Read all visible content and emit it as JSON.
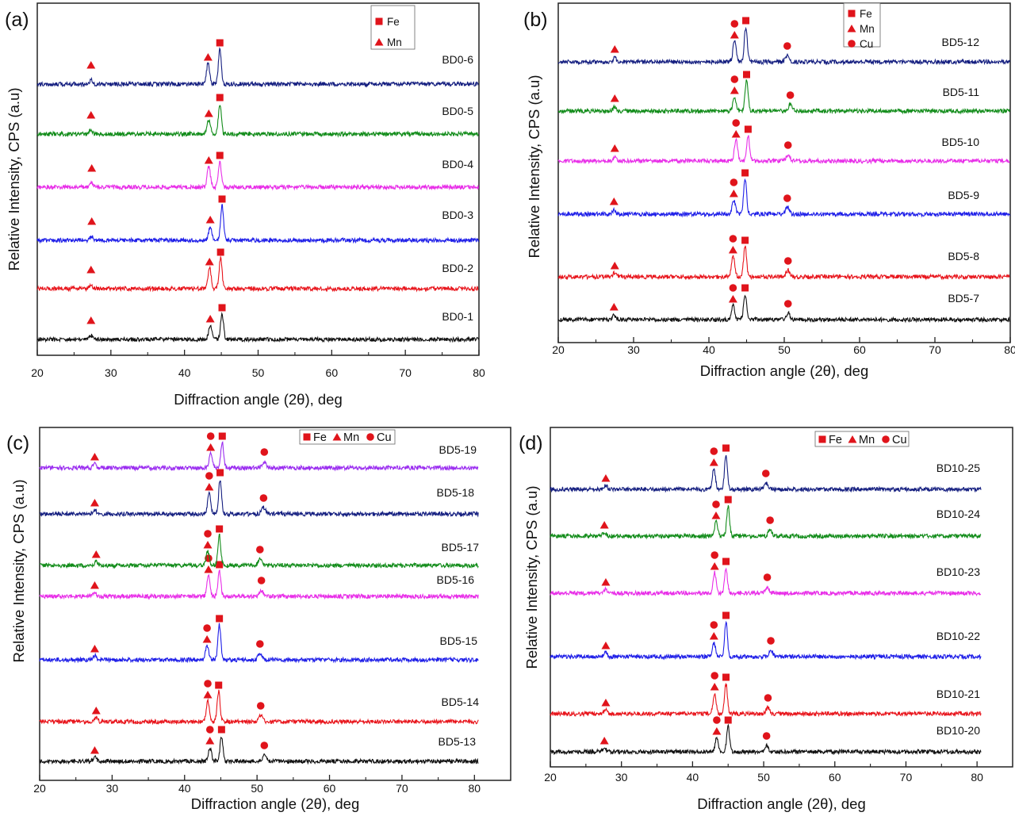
{
  "colors": {
    "black": "#111111",
    "red": "#e8141b",
    "blue": "#1f1fe8",
    "magenta": "#e82ee8",
    "green": "#128c1a",
    "navy": "#151f80",
    "purple": "#9a2cf0",
    "marker": "#e0141b"
  },
  "chart_data": [
    {
      "panel": "(a)",
      "type": "line",
      "xlabel": "Diffraction angle (2θ), deg",
      "ylabel": "Relative Intensity, CPS (a.u)",
      "xlim": [
        20,
        80
      ],
      "xticks": [
        20,
        30,
        40,
        50,
        60,
        70,
        80
      ],
      "legend": [
        "Fe",
        "Mn"
      ],
      "legend_position": "top-center",
      "series": [
        {
          "name": "BD0-1",
          "color": "black",
          "Mn_peak": 43.5,
          "Fe_peak": 45.1,
          "fe": 45.1,
          "mn": [
            27.3,
            43.5
          ],
          "cu": []
        },
        {
          "name": "BD0-2",
          "color": "red",
          "Mn_peak": 43.4,
          "Fe_peak": 44.9,
          "fe": 44.9,
          "mn": [
            27.3,
            43.4
          ],
          "cu": []
        },
        {
          "name": "BD0-3",
          "color": "blue",
          "Mn_peak": 43.5,
          "Fe_peak": 45.1,
          "fe": 45.1,
          "mn": [
            27.4,
            43.5
          ],
          "cu": []
        },
        {
          "name": "BD0-4",
          "color": "magenta",
          "Mn_peak": 43.3,
          "Fe_peak": 44.8,
          "fe": 44.8,
          "mn": [
            27.4,
            43.3
          ],
          "cu": []
        },
        {
          "name": "BD0-5",
          "color": "green",
          "Mn_peak": 43.3,
          "Fe_peak": 44.8,
          "fe": 44.8,
          "mn": [
            27.3,
            43.3
          ],
          "cu": []
        },
        {
          "name": "BD0-6",
          "color": "navy",
          "Mn_peak": 43.2,
          "Fe_peak": 44.8,
          "fe": 44.8,
          "mn": [
            27.3,
            43.2
          ],
          "cu": []
        }
      ]
    },
    {
      "panel": "(b)",
      "type": "line",
      "xlabel": "Diffraction angle (2θ), deg",
      "ylabel": "Relative Intensity, CPS (a.u)",
      "xlim": [
        20,
        80
      ],
      "xticks": [
        20,
        30,
        40,
        50,
        60,
        70,
        80
      ],
      "legend": [
        "Fe",
        "Mn",
        "Cu"
      ],
      "legend_position": "top-center",
      "series": [
        {
          "name": "BD5-7",
          "color": "black",
          "Mn_peak": 43.2,
          "Fe_peak": 44.8,
          "Cu_peak": 50.5,
          "fe": 44.8,
          "mn": [
            27.4,
            43.2
          ],
          "cu": [
            43.2,
            50.5
          ]
        },
        {
          "name": "BD5-8",
          "color": "red",
          "Mn_peak": 43.2,
          "Fe_peak": 44.8,
          "Cu_peak": 50.5,
          "fe": 44.8,
          "mn": [
            27.5,
            43.2
          ],
          "cu": [
            43.2,
            50.5
          ]
        },
        {
          "name": "BD5-9",
          "color": "blue",
          "Mn_peak": 43.3,
          "Fe_peak": 44.8,
          "Cu_peak": 50.4,
          "fe": 44.8,
          "mn": [
            27.4,
            43.3
          ],
          "cu": [
            43.3,
            50.4
          ]
        },
        {
          "name": "BD5-10",
          "color": "magenta",
          "Mn_peak": 43.6,
          "Fe_peak": 45.2,
          "Cu_peak": 50.5,
          "fe": 45.2,
          "mn": [
            27.5,
            43.6
          ],
          "cu": [
            43.6,
            50.5
          ]
        },
        {
          "name": "BD5-11",
          "color": "green",
          "Mn_peak": 43.4,
          "Fe_peak": 45.0,
          "Cu_peak": 50.8,
          "fe": 45.0,
          "mn": [
            27.5,
            43.4
          ],
          "cu": [
            43.4,
            50.8
          ]
        },
        {
          "name": "BD5-12",
          "color": "navy",
          "Mn_peak": 43.4,
          "Fe_peak": 44.9,
          "Cu_peak": 50.4,
          "fe": 44.9,
          "mn": [
            27.5,
            43.4
          ],
          "cu": [
            43.4,
            50.4
          ]
        }
      ]
    },
    {
      "panel": "(c)",
      "type": "line",
      "xlabel": "Diffraction angle (2θ), deg",
      "ylabel": "Relative Intensity, CPS (a.u)",
      "xlim": [
        20,
        85
      ],
      "xticks": [
        20,
        30,
        40,
        50,
        60,
        70,
        80
      ],
      "legend": [
        "Fe",
        "Mn",
        "Cu"
      ],
      "legend_position": "top-right",
      "series": [
        {
          "name": "BD5-13",
          "color": "black",
          "Mn_peak": 43.5,
          "Fe_peak": 45.1,
          "Cu_peak": 51.0,
          "fe": 45.1,
          "mn": [
            27.6,
            43.5
          ],
          "cu": [
            43.5,
            51.0
          ]
        },
        {
          "name": "BD5-14",
          "color": "red",
          "Mn_peak": 43.2,
          "Fe_peak": 44.7,
          "Cu_peak": 50.5,
          "fe": 44.7,
          "mn": [
            27.8,
            43.2
          ],
          "cu": [
            43.2,
            50.5
          ]
        },
        {
          "name": "BD5-15",
          "color": "blue",
          "Mn_peak": 43.1,
          "Fe_peak": 44.8,
          "Cu_peak": 50.4,
          "fe": 44.8,
          "mn": [
            27.6,
            43.1
          ],
          "cu": [
            43.1,
            50.4
          ]
        },
        {
          "name": "BD5-16",
          "color": "magenta",
          "Mn_peak": 43.3,
          "Fe_peak": 44.8,
          "Cu_peak": 50.6,
          "fe": 44.8,
          "mn": [
            27.6,
            43.3
          ],
          "cu": [
            43.3,
            50.6
          ]
        },
        {
          "name": "BD5-17",
          "color": "green",
          "Mn_peak": 43.2,
          "Fe_peak": 44.8,
          "Cu_peak": 50.4,
          "fe": 44.8,
          "mn": [
            27.8,
            43.2
          ],
          "cu": [
            43.2,
            50.4
          ]
        },
        {
          "name": "BD5-18",
          "color": "navy",
          "Mn_peak": 43.4,
          "Fe_peak": 44.9,
          "Cu_peak": 50.9,
          "fe": 44.9,
          "mn": [
            27.6,
            43.4
          ],
          "cu": [
            43.4,
            50.9
          ]
        },
        {
          "name": "BD5-19",
          "color": "purple",
          "Mn_peak": 43.6,
          "Fe_peak": 45.2,
          "Cu_peak": 51.0,
          "fe": 45.2,
          "mn": [
            27.6,
            43.6
          ],
          "cu": [
            43.6,
            51.0
          ]
        }
      ]
    },
    {
      "panel": "(d)",
      "type": "line",
      "xlabel": "Diffraction angle (2θ), deg",
      "ylabel": "Relative Intensity, CPS (a.u)",
      "xlim": [
        20,
        85
      ],
      "xticks": [
        20,
        30,
        40,
        50,
        60,
        70,
        80
      ],
      "legend": [
        "Fe",
        "Mn",
        "Cu"
      ],
      "legend_position": "top-center",
      "series": [
        {
          "name": "BD10-20",
          "color": "black",
          "Mn_peak": 43.4,
          "Fe_peak": 45.0,
          "Cu_peak": 50.4,
          "fe": 45.0,
          "mn": [
            27.6,
            43.4
          ],
          "cu": [
            43.4,
            50.4
          ]
        },
        {
          "name": "BD10-21",
          "color": "red",
          "Mn_peak": 43.1,
          "Fe_peak": 44.7,
          "Cu_peak": 50.6,
          "fe": 44.7,
          "mn": [
            27.8,
            43.1
          ],
          "cu": [
            43.1,
            50.6
          ]
        },
        {
          "name": "BD10-22",
          "color": "blue",
          "Mn_peak": 43.0,
          "Fe_peak": 44.7,
          "Cu_peak": 51.0,
          "fe": 44.7,
          "mn": [
            27.8,
            43.0
          ],
          "cu": [
            43.0,
            51.0
          ]
        },
        {
          "name": "BD10-23",
          "color": "magenta",
          "Mn_peak": 43.1,
          "Fe_peak": 44.7,
          "Cu_peak": 50.5,
          "fe": 44.7,
          "mn": [
            27.8,
            43.1
          ],
          "cu": [
            43.1,
            50.5
          ]
        },
        {
          "name": "BD10-24",
          "color": "green",
          "Mn_peak": 43.3,
          "Fe_peak": 45.0,
          "Cu_peak": 50.9,
          "fe": 45.0,
          "mn": [
            27.6,
            43.3
          ],
          "cu": [
            43.3,
            50.9
          ]
        },
        {
          "name": "BD10-25",
          "color": "navy",
          "Mn_peak": 43.0,
          "Fe_peak": 44.7,
          "Cu_peak": 50.3,
          "fe": 44.7,
          "mn": [
            27.8,
            43.0
          ],
          "cu": [
            43.0,
            50.3
          ]
        }
      ]
    }
  ]
}
